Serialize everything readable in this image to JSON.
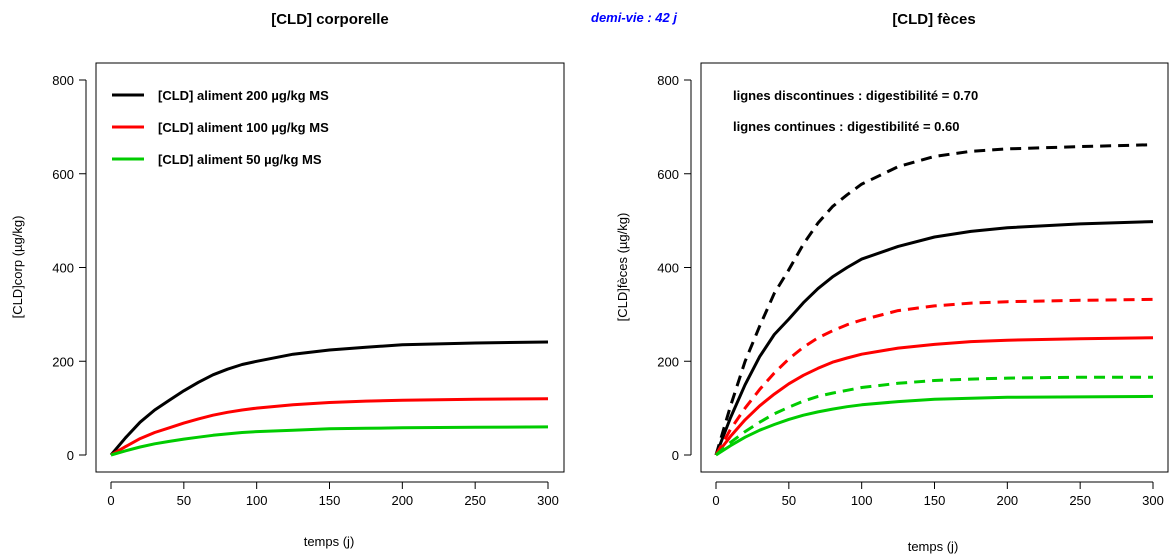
{
  "subtitle": "demi-vie : 42 j",
  "chart_data": [
    {
      "type": "line",
      "title": "[CLD] corporelle",
      "xlabel": "temps (j)",
      "ylabel": "[CLD]corp (µg/kg)",
      "xlim": [
        0,
        300
      ],
      "ylim": [
        0,
        800
      ],
      "x_ticks": [
        0,
        50,
        100,
        150,
        200,
        250,
        300
      ],
      "y_ticks": [
        0,
        200,
        400,
        600,
        800
      ],
      "grid": false,
      "legend_position": "top-left",
      "legend": [
        {
          "label": "[CLD] aliment 200 µg/kg MS",
          "color": "#000000"
        },
        {
          "label": "[CLD] aliment 100 µg/kg MS",
          "color": "#ff0000"
        },
        {
          "label": "[CLD] aliment 50 µg/kg MS",
          "color": "#00cc00"
        }
      ],
      "x": [
        0,
        10,
        20,
        30,
        40,
        50,
        60,
        70,
        80,
        90,
        100,
        125,
        150,
        175,
        200,
        250,
        300
      ],
      "series": [
        {
          "color": "#000000",
          "style": "solid",
          "values": [
            0,
            37,
            70,
            96,
            117,
            137,
            155,
            171,
            183,
            193,
            200,
            215,
            224,
            230,
            235,
            239,
            241
          ]
        },
        {
          "color": "#ff0000",
          "style": "solid",
          "values": [
            0,
            18,
            35,
            48,
            58,
            68,
            77,
            85,
            91,
            96,
            100,
            107,
            112,
            115,
            117,
            119,
            120
          ]
        },
        {
          "color": "#00cc00",
          "style": "solid",
          "values": [
            0,
            9,
            17,
            24,
            29,
            34,
            38,
            42,
            45,
            48,
            50,
            53,
            56,
            57,
            58,
            59,
            60
          ]
        }
      ]
    },
    {
      "type": "line",
      "title": "[CLD] fèces",
      "xlabel": "temps (j)",
      "ylabel": "[CLD]fèces (µg/kg)",
      "xlim": [
        0,
        300
      ],
      "ylim": [
        0,
        800
      ],
      "x_ticks": [
        0,
        50,
        100,
        150,
        200,
        250,
        300
      ],
      "y_ticks": [
        0,
        200,
        400,
        600,
        800
      ],
      "grid": false,
      "annotations": [
        "lignes discontinues : digestibilité = 0.70",
        "lignes continues : digestibilité = 0.60"
      ],
      "x": [
        0,
        10,
        20,
        30,
        40,
        50,
        60,
        70,
        80,
        90,
        100,
        125,
        150,
        175,
        200,
        250,
        300
      ],
      "series": [
        {
          "color": "#000000",
          "style": "dashed",
          "values": [
            0,
            105,
            200,
            275,
            345,
            395,
            450,
            495,
            530,
            555,
            578,
            615,
            637,
            648,
            653,
            658,
            662
          ]
        },
        {
          "color": "#000000",
          "style": "solid",
          "values": [
            0,
            80,
            150,
            210,
            257,
            290,
            325,
            355,
            380,
            400,
            418,
            445,
            465,
            477,
            485,
            493,
            498
          ]
        },
        {
          "color": "#ff0000",
          "style": "dashed",
          "values": [
            0,
            55,
            100,
            140,
            175,
            205,
            230,
            250,
            265,
            278,
            288,
            308,
            318,
            324,
            327,
            330,
            332
          ]
        },
        {
          "color": "#ff0000",
          "style": "solid",
          "values": [
            0,
            40,
            75,
            105,
            130,
            152,
            170,
            185,
            198,
            207,
            215,
            228,
            236,
            242,
            245,
            248,
            250
          ]
        },
        {
          "color": "#00cc00",
          "style": "dashed",
          "values": [
            0,
            27,
            50,
            70,
            88,
            102,
            115,
            125,
            132,
            138,
            144,
            153,
            159,
            162,
            164,
            166,
            166
          ]
        },
        {
          "color": "#00cc00",
          "style": "solid",
          "values": [
            0,
            20,
            38,
            53,
            65,
            76,
            85,
            92,
            98,
            103,
            107,
            114,
            119,
            121,
            123,
            124,
            125
          ]
        }
      ]
    }
  ]
}
